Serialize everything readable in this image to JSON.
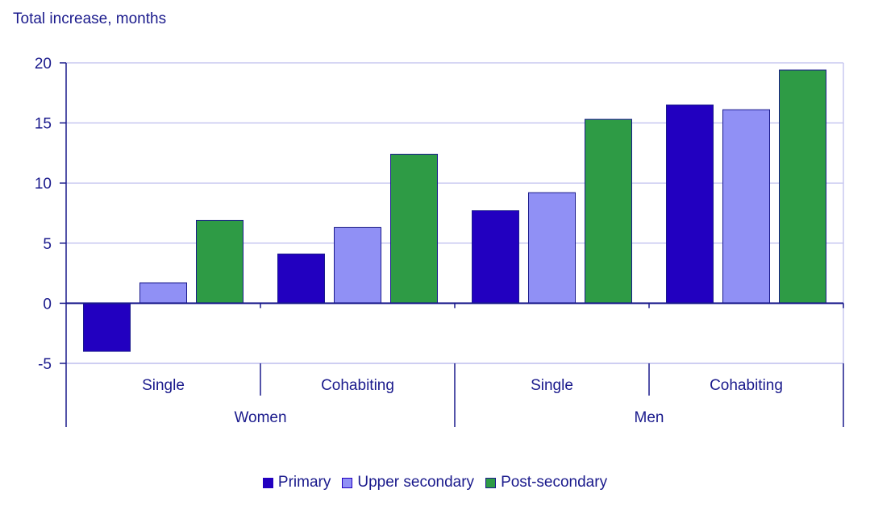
{
  "chart_data": {
    "type": "bar",
    "ylabel": "Total increase, months",
    "ylim": [
      -5,
      20
    ],
    "yticks": [
      -5,
      0,
      5,
      10,
      15,
      20
    ],
    "grid": true,
    "legend_position": "bottom",
    "groups": [
      {
        "label": "Women",
        "subgroups": [
          "Single",
          "Cohabiting"
        ]
      },
      {
        "label": "Men",
        "subgroups": [
          "Single",
          "Cohabiting"
        ]
      }
    ],
    "categories": [
      "Women Single",
      "Women Cohabiting",
      "Men Single",
      "Men Cohabiting"
    ],
    "category_labels": [
      "Single",
      "Cohabiting",
      "Single",
      "Cohabiting"
    ],
    "series": [
      {
        "name": "Primary",
        "color": "#2200c0",
        "values": [
          -4.0,
          4.1,
          7.7,
          16.5
        ]
      },
      {
        "name": "Upper secondary",
        "color": "#9090f5",
        "values": [
          1.7,
          6.3,
          9.2,
          16.1
        ]
      },
      {
        "name": "Post-secondary",
        "color": "#2e9b45",
        "values": [
          6.9,
          12.4,
          15.3,
          19.4
        ]
      }
    ]
  }
}
